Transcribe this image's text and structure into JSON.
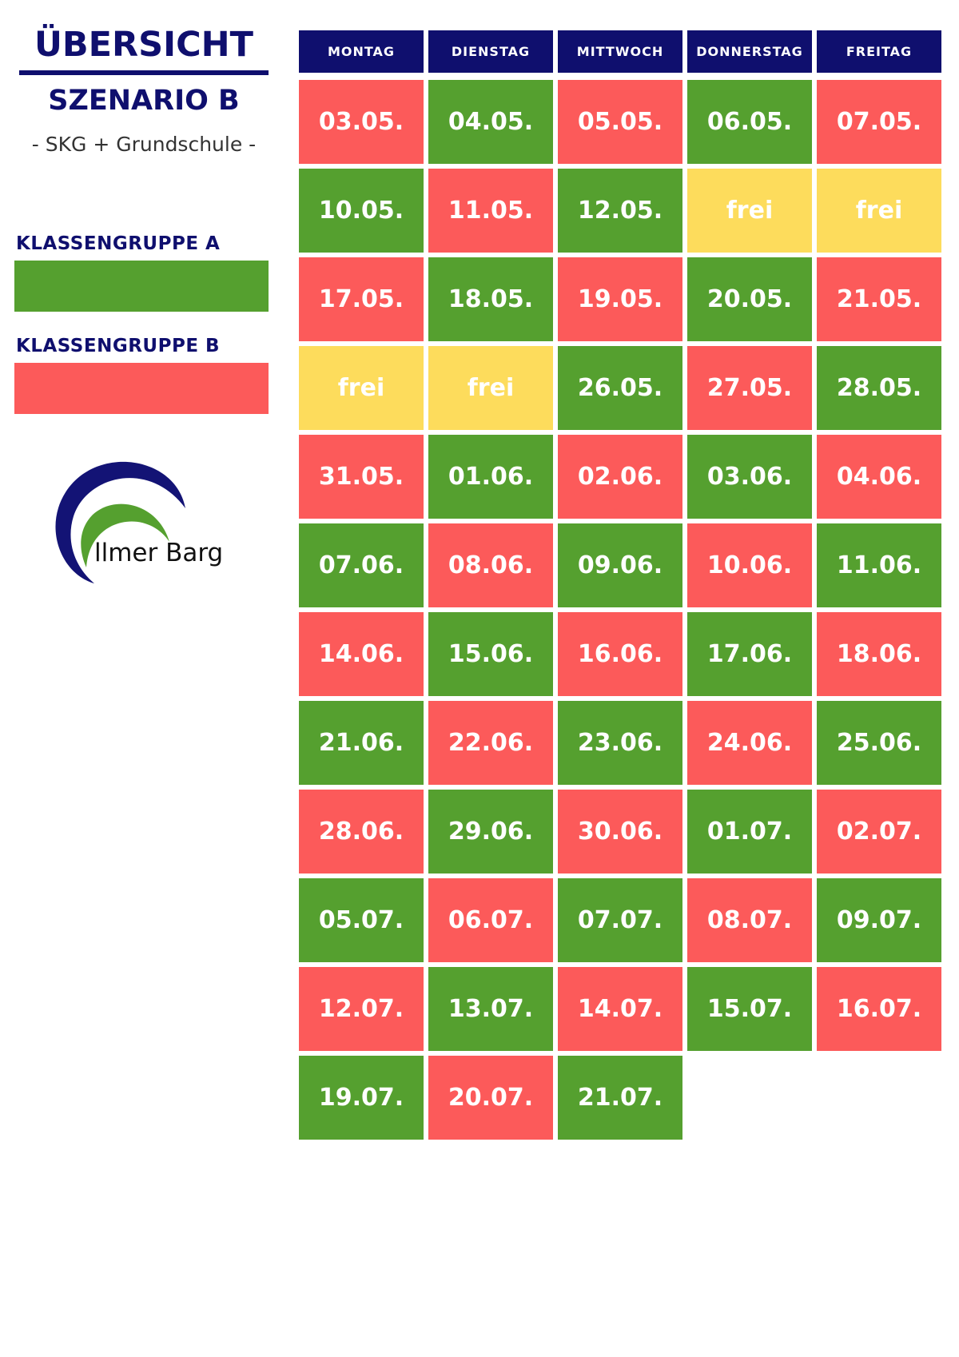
{
  "sidebar": {
    "title": "ÜBERSICHT",
    "subtitle": "SZENARIO B",
    "subtitle2": "- SKG + Grundschule -",
    "legend": [
      {
        "label": "KLASSENGRUPPE A",
        "color": "#55a02f"
      },
      {
        "label": "KLASSENGRUPPE B",
        "color": "#fc5a5a"
      }
    ],
    "logo": {
      "text": "llmer Barg",
      "colors": {
        "outer": "#131375",
        "inner": "#55a02f"
      }
    }
  },
  "colors": {
    "A": "#55a02f",
    "B": "#fc5a5a",
    "frei": "#fddc5c",
    "header": "#0f0f6e"
  },
  "schedule": {
    "days": [
      "MONTAG",
      "DIENSTAG",
      "MITTWOCH",
      "DONNERSTAG",
      "FREITAG"
    ],
    "weeks": [
      [
        {
          "t": "03.05.",
          "g": "B"
        },
        {
          "t": "04.05.",
          "g": "A"
        },
        {
          "t": "05.05.",
          "g": "B"
        },
        {
          "t": "06.05.",
          "g": "A"
        },
        {
          "t": "07.05.",
          "g": "B"
        }
      ],
      [
        {
          "t": "10.05.",
          "g": "A"
        },
        {
          "t": "11.05.",
          "g": "B"
        },
        {
          "t": "12.05.",
          "g": "A"
        },
        {
          "t": "frei",
          "g": "frei"
        },
        {
          "t": "frei",
          "g": "frei"
        }
      ],
      [
        {
          "t": "17.05.",
          "g": "B"
        },
        {
          "t": "18.05.",
          "g": "A"
        },
        {
          "t": "19.05.",
          "g": "B"
        },
        {
          "t": "20.05.",
          "g": "A"
        },
        {
          "t": "21.05.",
          "g": "B"
        }
      ],
      [
        {
          "t": "frei",
          "g": "frei"
        },
        {
          "t": "frei",
          "g": "frei"
        },
        {
          "t": "26.05.",
          "g": "A"
        },
        {
          "t": "27.05.",
          "g": "B"
        },
        {
          "t": "28.05.",
          "g": "A"
        }
      ],
      [
        {
          "t": "31.05.",
          "g": "B"
        },
        {
          "t": "01.06.",
          "g": "A"
        },
        {
          "t": "02.06.",
          "g": "B"
        },
        {
          "t": "03.06.",
          "g": "A"
        },
        {
          "t": "04.06.",
          "g": "B"
        }
      ],
      [
        {
          "t": "07.06.",
          "g": "A"
        },
        {
          "t": "08.06.",
          "g": "B"
        },
        {
          "t": "09.06.",
          "g": "A"
        },
        {
          "t": "10.06.",
          "g": "B"
        },
        {
          "t": "11.06.",
          "g": "A"
        }
      ],
      [
        {
          "t": "14.06.",
          "g": "B"
        },
        {
          "t": "15.06.",
          "g": "A"
        },
        {
          "t": "16.06.",
          "g": "B"
        },
        {
          "t": "17.06.",
          "g": "A"
        },
        {
          "t": "18.06.",
          "g": "B"
        }
      ],
      [
        {
          "t": "21.06.",
          "g": "A"
        },
        {
          "t": "22.06.",
          "g": "B"
        },
        {
          "t": "23.06.",
          "g": "A"
        },
        {
          "t": "24.06.",
          "g": "B"
        },
        {
          "t": "25.06.",
          "g": "A"
        }
      ],
      [
        {
          "t": "28.06.",
          "g": "B"
        },
        {
          "t": "29.06.",
          "g": "A"
        },
        {
          "t": "30.06.",
          "g": "B"
        },
        {
          "t": "01.07.",
          "g": "A"
        },
        {
          "t": "02.07.",
          "g": "B"
        }
      ],
      [
        {
          "t": "05.07.",
          "g": "A"
        },
        {
          "t": "06.07.",
          "g": "B"
        },
        {
          "t": "07.07.",
          "g": "A"
        },
        {
          "t": "08.07.",
          "g": "B"
        },
        {
          "t": "09.07.",
          "g": "A"
        }
      ],
      [
        {
          "t": "12.07.",
          "g": "B"
        },
        {
          "t": "13.07.",
          "g": "A"
        },
        {
          "t": "14.07.",
          "g": "B"
        },
        {
          "t": "15.07.",
          "g": "A"
        },
        {
          "t": "16.07.",
          "g": "B"
        }
      ],
      [
        {
          "t": "19.07.",
          "g": "A"
        },
        {
          "t": "20.07.",
          "g": "B"
        },
        {
          "t": "21.07.",
          "g": "A"
        }
      ]
    ]
  }
}
